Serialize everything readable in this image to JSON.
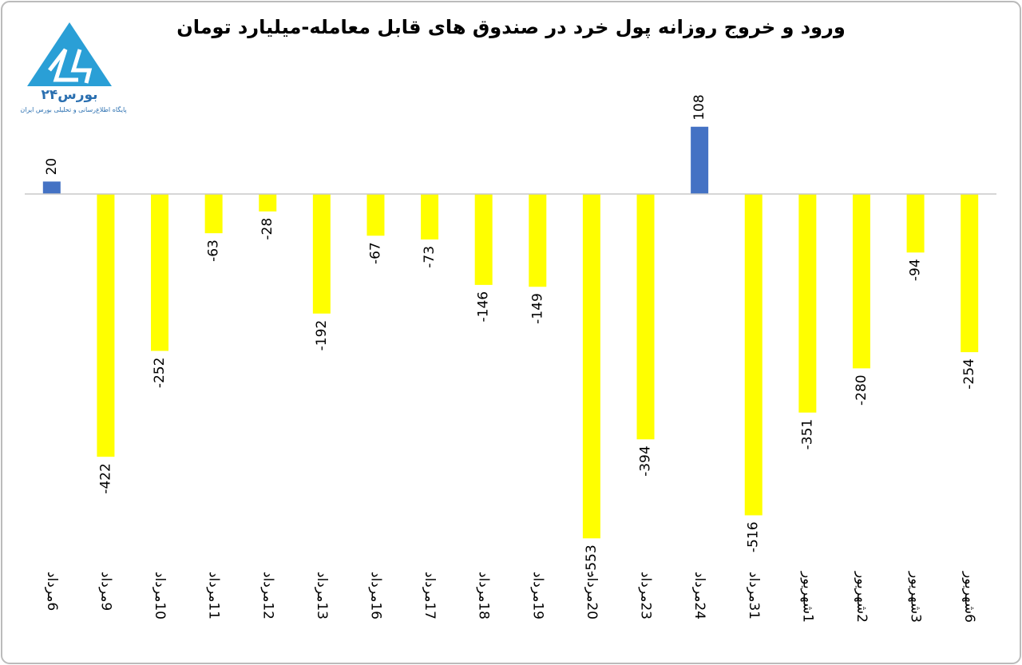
{
  "chart_data": {
    "type": "bar",
    "title": "ورود و خروج روزانه پول خرد در صندوق های قابل معامله-میلیارد تومان",
    "logo_text": "بورس۲۴",
    "logo_subtitle": "پایگاه اطلاع‌رسانی و تحلیلی بورس ایران",
    "categories": [
      "6مرداد",
      "9مرداد",
      "10مرداد",
      "11مرداد",
      "12مرداد",
      "13مرداد",
      "16مرداد",
      "17مرداد",
      "18مرداد",
      "19مرداد",
      "20مرداد",
      "23مرداد",
      "24مرداد",
      "31مرداد",
      "1شهریور",
      "2شهریور",
      "3شهریور",
      "6شهریور"
    ],
    "values": [
      20,
      -422,
      -252,
      -63,
      -28,
      -192,
      -67,
      -73,
      -146,
      -149,
      -553,
      -394,
      108,
      -516,
      -351,
      -280,
      -94,
      -254
    ],
    "positive_color": "#4472c4",
    "negative_color": "#ffff00",
    "ylim": [
      -600,
      150
    ]
  }
}
